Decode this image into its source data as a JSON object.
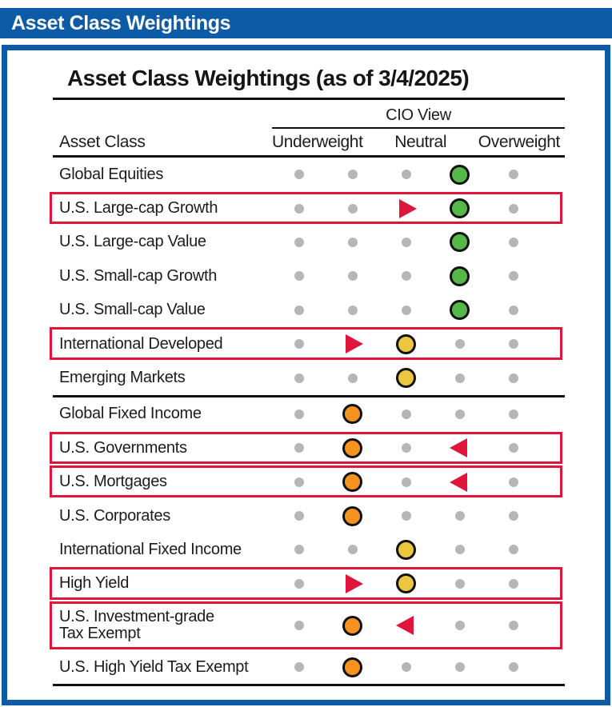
{
  "colors": {
    "brand_blue": "#0d5ba6",
    "accent_red": "#e0153c",
    "marker_green": "#54b948",
    "marker_yellow": "#eac73e",
    "marker_orange": "#f6921e",
    "dot_gray": "#b4b6b9",
    "line_black": "#111111"
  },
  "header_bar": {
    "title": "Asset Class Weightings"
  },
  "panel": {
    "title": "Asset Class Weightings (as of 3/4/2025)",
    "cio_view_label": "CIO View",
    "asset_class_label": "Asset Class",
    "columns": [
      "Underweight",
      "Neutral",
      "Overweight"
    ]
  },
  "chart_data": {
    "type": "table",
    "title": "Asset Class Weightings (as of 3/4/2025)",
    "as_of_date": "3/4/2025",
    "scale_note": "5 dot positions per row: 1-2 = Underweight, 3 = Neutral, 4-5 = Overweight; colored circle = current CIO view; red triangle = recent change direction; red outline = rows with changes",
    "column_headers": [
      "Underweight",
      "Neutral",
      "Overweight"
    ],
    "rows": [
      {
        "label": "Global Equities",
        "marker": {
          "position": 4,
          "color": "green"
        }
      },
      {
        "label": "U.S. Large-cap Growth",
        "marker": {
          "position": 4,
          "color": "green"
        },
        "arrow": {
          "position": 3,
          "direction": "right"
        },
        "boxed": true
      },
      {
        "label": "U.S. Large-cap Value",
        "marker": {
          "position": 4,
          "color": "green"
        }
      },
      {
        "label": "U.S. Small-cap Growth",
        "marker": {
          "position": 4,
          "color": "green"
        }
      },
      {
        "label": "U.S. Small-cap Value",
        "marker": {
          "position": 4,
          "color": "green"
        }
      },
      {
        "label": "International Developed",
        "marker": {
          "position": 3,
          "color": "yellow"
        },
        "arrow": {
          "position": 2,
          "direction": "right"
        },
        "boxed": true
      },
      {
        "label": "Emerging Markets",
        "marker": {
          "position": 3,
          "color": "yellow"
        }
      },
      {
        "label": "Global Fixed Income",
        "marker": {
          "position": 2,
          "color": "orange"
        },
        "section_start": true
      },
      {
        "label": "U.S. Governments",
        "marker": {
          "position": 2,
          "color": "orange"
        },
        "arrow": {
          "position": 4,
          "direction": "left"
        },
        "boxed": true
      },
      {
        "label": "U.S. Mortgages",
        "marker": {
          "position": 2,
          "color": "orange"
        },
        "arrow": {
          "position": 4,
          "direction": "left"
        },
        "boxed": true
      },
      {
        "label": "U.S. Corporates",
        "marker": {
          "position": 2,
          "color": "orange"
        }
      },
      {
        "label": "International Fixed Income",
        "marker": {
          "position": 3,
          "color": "yellow"
        }
      },
      {
        "label": "High Yield",
        "marker": {
          "position": 3,
          "color": "yellow"
        },
        "arrow": {
          "position": 2,
          "direction": "right"
        },
        "boxed": true
      },
      {
        "label": "U.S. Investment-grade\nTax Exempt",
        "marker": {
          "position": 2,
          "color": "orange"
        },
        "arrow": {
          "position": 3,
          "direction": "left"
        },
        "boxed": true,
        "tall": true
      },
      {
        "label": "U.S. High Yield Tax Exempt",
        "marker": {
          "position": 2,
          "color": "orange"
        }
      }
    ]
  }
}
